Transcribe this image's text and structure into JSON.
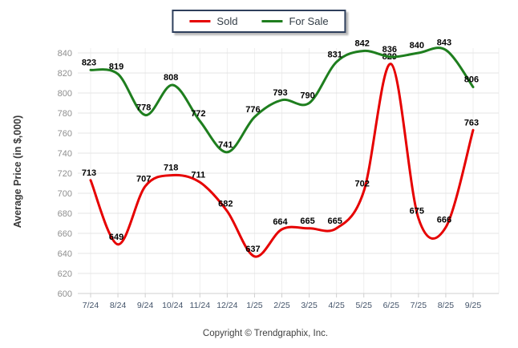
{
  "legend": {
    "items": [
      {
        "label": "Sold",
        "color": "#e60000"
      },
      {
        "label": "For Sale",
        "color": "#1e7e1e"
      }
    ]
  },
  "chart_data": {
    "type": "line",
    "categories": [
      "7/24",
      "8/24",
      "9/24",
      "10/24",
      "11/24",
      "12/24",
      "1/25",
      "2/25",
      "3/25",
      "4/25",
      "5/25",
      "6/25",
      "7/25",
      "8/25",
      "9/25"
    ],
    "series": [
      {
        "name": "Sold",
        "color": "#e60000",
        "values": [
          713,
          649,
          707,
          718,
          711,
          682,
          637,
          664,
          665,
          665,
          702,
          829,
          675,
          666,
          763
        ]
      },
      {
        "name": "For Sale",
        "color": "#1e7e1e",
        "values": [
          823,
          819,
          778,
          808,
          772,
          741,
          776,
          793,
          790,
          831,
          842,
          836,
          840,
          843,
          806
        ]
      }
    ],
    "title": "",
    "xlabel": "",
    "ylabel": "Average Price (in $,000)",
    "ylim": [
      600,
      840
    ],
    "ytick_step": 20,
    "grid": true,
    "legend_position": "top-center",
    "data_labels": true,
    "line_style": "smooth"
  },
  "footer": {
    "copyright": "Copyright © Trendgraphix, Inc."
  },
  "colors": {
    "sold": "#e60000",
    "for_sale": "#1e7e1e",
    "grid_line": "#e4e4e4",
    "grid_line_vertical": "#efefef",
    "axis_line": "#cfcfcf",
    "y_tick_label": "#8f8f8f",
    "x_tick_label": "#44546a",
    "data_label": "#000000",
    "legend_border": "#2e3f5c"
  }
}
